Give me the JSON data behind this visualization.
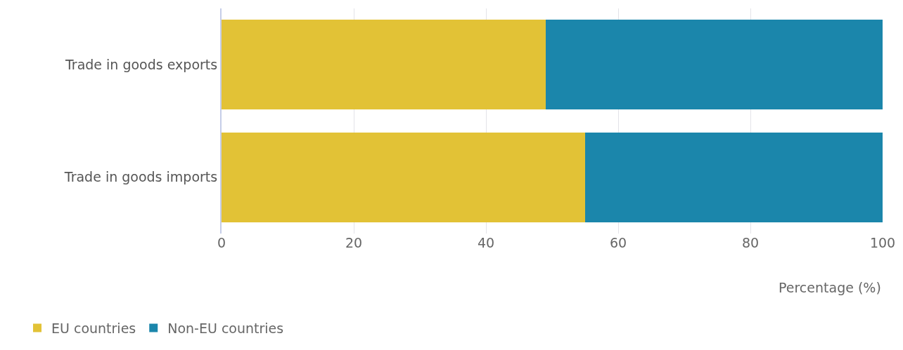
{
  "chart_data": {
    "type": "bar",
    "orientation": "horizontal",
    "stacked": true,
    "categories": [
      "Trade in goods exports",
      "Trade in goods imports"
    ],
    "series": [
      {
        "name": "EU countries",
        "color": "#e2c236",
        "values": [
          49,
          55
        ]
      },
      {
        "name": "Non-EU countries",
        "color": "#1b86ab",
        "values": [
          51,
          45
        ]
      }
    ],
    "xlabel": "Percentage (%)",
    "xlim": [
      0,
      100
    ],
    "xticks": [
      0,
      20,
      40,
      60,
      80,
      100
    ],
    "grid": "x",
    "legend": "bottom left"
  }
}
